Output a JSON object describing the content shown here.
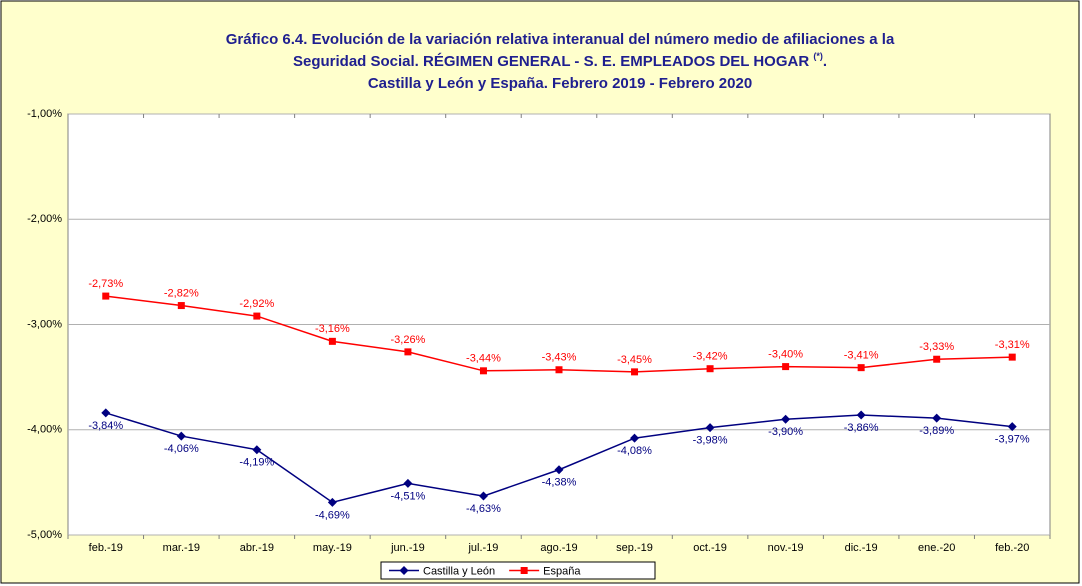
{
  "chart_data": {
    "type": "line",
    "title_line1": "Gráfico 6.4. Evolución de la variación relativa interanual del número medio de afiliaciones a la",
    "title_line2": "Seguridad Social. RÉGIMEN GENERAL - S. E. EMPLEADOS DEL HOGAR ",
    "title_line2_sup": "(*)",
    "title_line2_end": ".",
    "title_line3": "Castilla y León y España. Febrero 2019 - Febrero 2020",
    "categories": [
      "feb.-19",
      "mar.-19",
      "abr.-19",
      "may.-19",
      "jun.-19",
      "jul.-19",
      "ago.-19",
      "sep.-19",
      "oct.-19",
      "nov.-19",
      "dic.-19",
      "ene.-20",
      "feb.-20"
    ],
    "series": [
      {
        "name": "Castilla y León",
        "color": "#000080",
        "marker": "diamond",
        "label_position": "below",
        "values": [
          -3.84,
          -4.06,
          -4.19,
          -4.69,
          -4.51,
          -4.63,
          -4.38,
          -4.08,
          -3.98,
          -3.9,
          -3.86,
          -3.89,
          -3.97
        ],
        "value_labels": [
          "-3,84%",
          "-4,06%",
          "-4,19%",
          "-4,69%",
          "-4,51%",
          "-4,63%",
          "-4,38%",
          "-4,08%",
          "-3,98%",
          "-3,90%",
          "-3,86%",
          "-3,89%",
          "-3,97%"
        ]
      },
      {
        "name": "España",
        "color": "#ff0000",
        "marker": "square",
        "label_position": "above",
        "values": [
          -2.73,
          -2.82,
          -2.92,
          -3.16,
          -3.26,
          -3.44,
          -3.43,
          -3.45,
          -3.42,
          -3.4,
          -3.41,
          -3.33,
          -3.31
        ],
        "value_labels": [
          "-2,73%",
          "-2,82%",
          "-2,92%",
          "-3,16%",
          "-3,26%",
          "-3,44%",
          "-3,43%",
          "-3,45%",
          "-3,42%",
          "-3,40%",
          "-3,41%",
          "-3,33%",
          "-3,31%"
        ]
      }
    ],
    "ylim": [
      -5,
      -1
    ],
    "yticks": [
      {
        "value": -5,
        "label": "-5,00%"
      },
      {
        "value": -4,
        "label": "-4,00%"
      },
      {
        "value": -3,
        "label": "-3,00%"
      },
      {
        "value": -2,
        "label": "-2,00%"
      },
      {
        "value": -1,
        "label": "-1,00%"
      }
    ],
    "grid": true,
    "legend": "bottom"
  }
}
